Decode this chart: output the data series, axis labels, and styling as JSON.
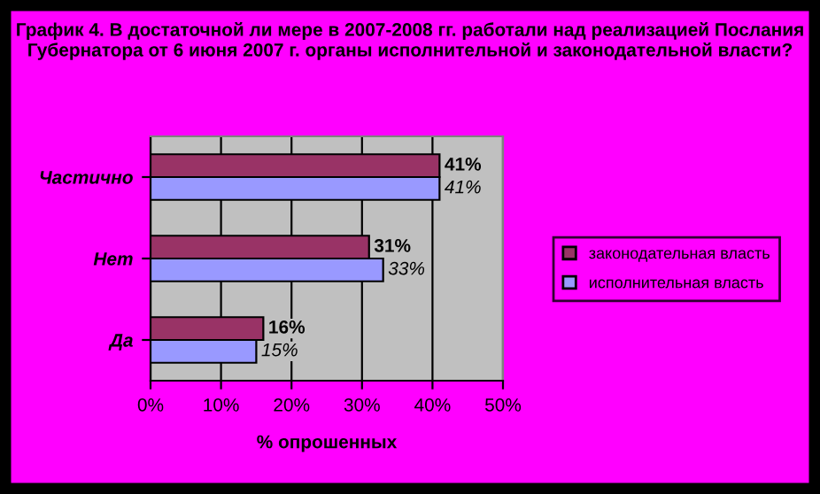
{
  "chart_data": {
    "type": "bar",
    "orientation": "horizontal",
    "title": "График 4. В достаточной ли мере в 2007-2008 гг. работали над реализацией Послания Губернатора от 6 июня 2007 г. органы исполнительной и законодательной власти?",
    "xlabel": "% опрошенных",
    "categories": [
      "Частично",
      "Нет",
      "Да"
    ],
    "series": [
      {
        "name": "законодательная власть",
        "color": "#993366",
        "values": [
          41,
          31,
          16
        ],
        "value_labels": [
          "41%",
          "31%",
          "16%"
        ]
      },
      {
        "name": "исполнительная власть",
        "color": "#9999ff",
        "values": [
          41,
          33,
          15
        ],
        "value_labels": [
          "41%",
          "33%",
          "15%"
        ]
      }
    ],
    "xlim": [
      0,
      50
    ],
    "xticks": [
      {
        "value": 0,
        "label": "0%"
      },
      {
        "value": 10,
        "label": "10%"
      },
      {
        "value": 20,
        "label": "20%"
      },
      {
        "value": 30,
        "label": "30%"
      },
      {
        "value": 40,
        "label": "40%"
      },
      {
        "value": 50,
        "label": "50%"
      }
    ],
    "grid": "x",
    "legend": "right"
  }
}
